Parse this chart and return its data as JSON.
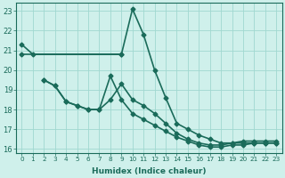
{
  "xlabel": "Humidex (Indice chaleur)",
  "bg_color": "#cff0eb",
  "grid_color": "#a0d8d0",
  "line_color": "#1a6b5a",
  "xlim": [
    -0.5,
    23.5
  ],
  "ylim": [
    15.8,
    23.4
  ],
  "xticks": [
    0,
    1,
    2,
    3,
    4,
    5,
    6,
    7,
    8,
    9,
    10,
    11,
    12,
    13,
    14,
    15,
    16,
    17,
    18,
    19,
    20,
    21,
    22,
    23
  ],
  "yticks": [
    16,
    17,
    18,
    19,
    20,
    21,
    22,
    23
  ],
  "series": [
    {
      "x": [
        0,
        9
      ],
      "y": [
        20.8,
        20.8
      ],
      "marker": "D",
      "markersize": 2.5,
      "lw": 1.2
    },
    {
      "x": [
        0,
        1,
        9,
        10,
        11,
        12,
        13,
        14,
        15,
        16,
        17,
        18,
        19,
        20,
        21,
        22,
        23
      ],
      "y": [
        21.3,
        20.8,
        20.8,
        23.1,
        21.8,
        20.0,
        18.6,
        17.3,
        17.0,
        16.7,
        16.5,
        16.3,
        16.3,
        16.4,
        16.4,
        16.4,
        16.4
      ],
      "marker": "D",
      "markersize": 2.5,
      "lw": 1.2
    },
    {
      "x": [
        2,
        3,
        4,
        5,
        6,
        7,
        8,
        9,
        10,
        11,
        12,
        13,
        14,
        15,
        16,
        17,
        18,
        19,
        20,
        21,
        22,
        23
      ],
      "y": [
        19.5,
        19.2,
        18.4,
        18.2,
        18.0,
        18.0,
        18.5,
        19.3,
        18.5,
        18.2,
        17.8,
        17.3,
        16.8,
        16.5,
        16.3,
        16.2,
        16.2,
        16.3,
        16.3,
        16.3,
        16.3,
        16.3
      ],
      "marker": "D",
      "markersize": 2.5,
      "lw": 1.2
    },
    {
      "x": [
        2,
        3,
        4,
        5,
        6,
        7,
        8,
        9,
        10,
        11,
        12,
        13,
        14,
        15,
        16,
        17,
        18,
        19,
        20,
        21,
        22,
        23
      ],
      "y": [
        19.5,
        19.2,
        18.4,
        18.2,
        18.0,
        18.0,
        19.7,
        18.5,
        17.8,
        17.5,
        17.2,
        16.9,
        16.6,
        16.4,
        16.2,
        16.1,
        16.1,
        16.2,
        16.2,
        16.3,
        16.3,
        16.3
      ],
      "marker": "D",
      "markersize": 2.5,
      "lw": 1.2
    }
  ]
}
